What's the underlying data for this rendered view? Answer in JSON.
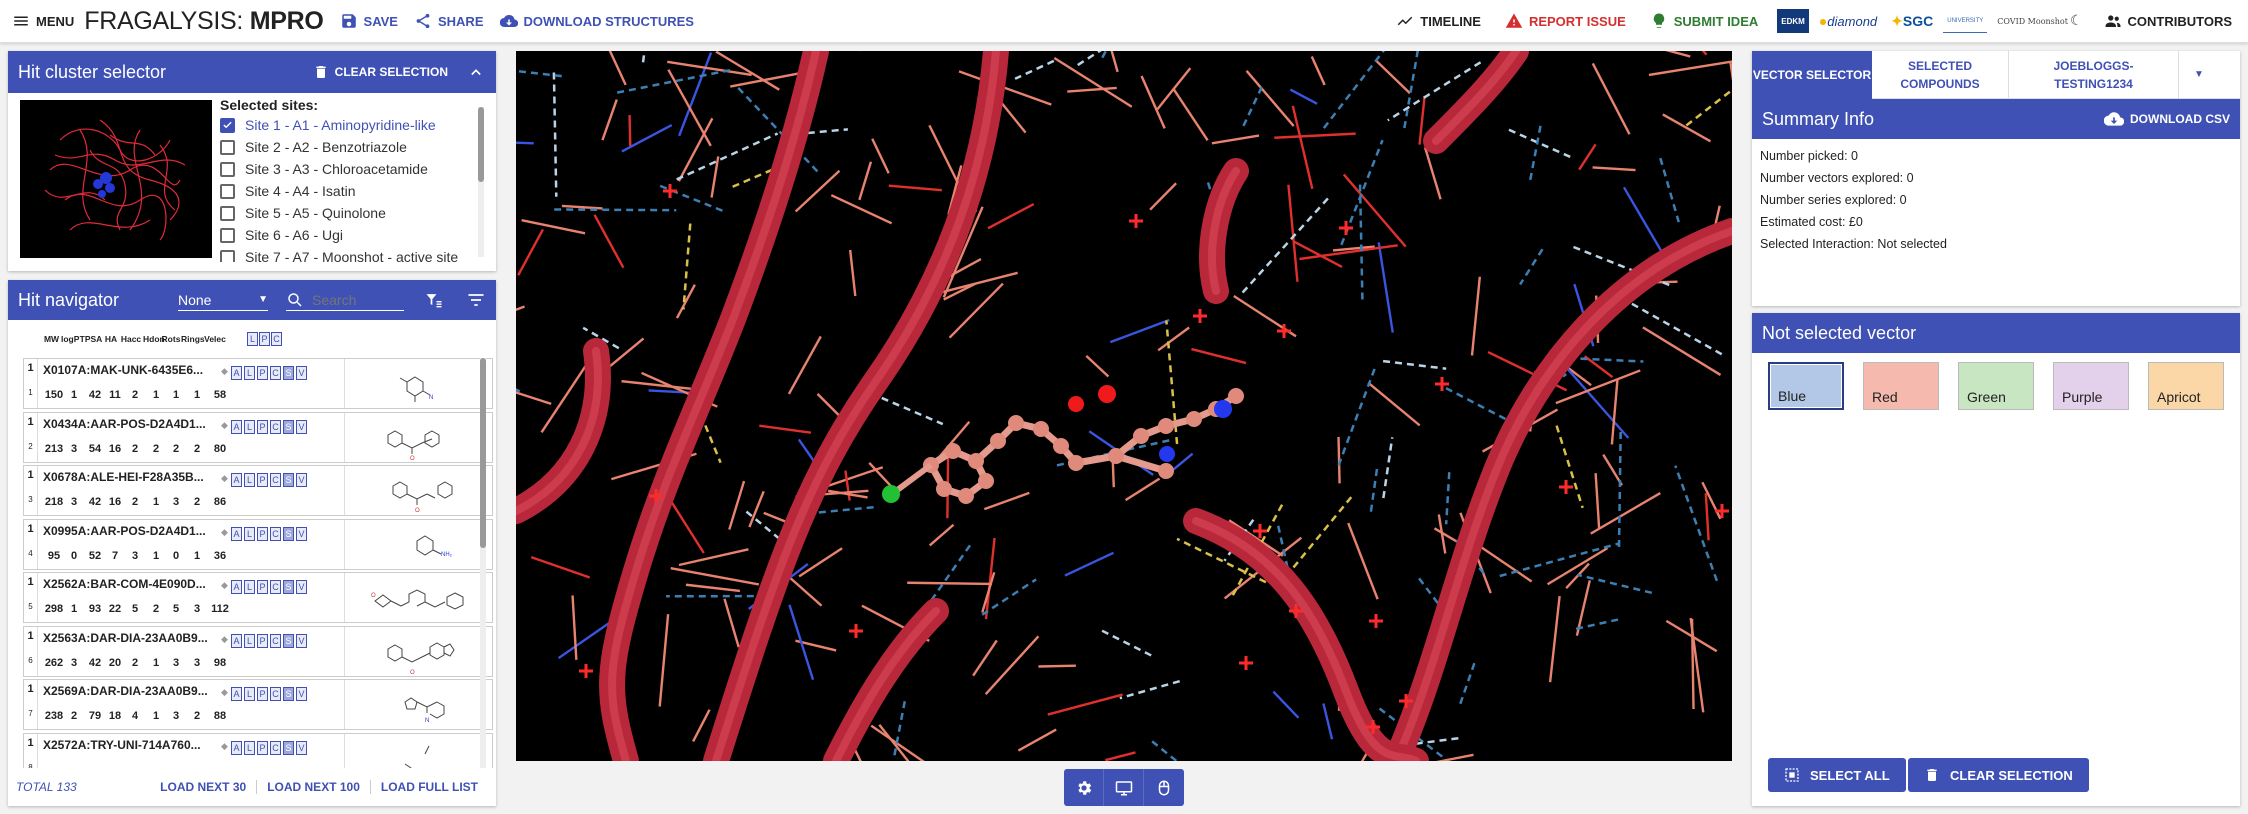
{
  "topbar": {
    "menu_label": "Menu",
    "brand_prefix": "FRAGALYSIS:",
    "brand_target": "MPRO",
    "save_label": "Save",
    "share_label": "Share",
    "download_label": "Download structures",
    "timeline_label": "Timeline",
    "report_label": "Report issue",
    "submit_label": "Submit idea",
    "contributors_label": "Contributors",
    "logos": [
      "EDKM",
      "diamond",
      "SGC",
      "UNIVERSITY",
      "COVID Moonshot"
    ]
  },
  "cluster": {
    "title": "Hit cluster selector",
    "clear_label": "Clear selection",
    "selected_sites_label": "Selected sites:",
    "sites": [
      {
        "label": "Site 1 - A1 - Aminopyridine-like",
        "checked": true
      },
      {
        "label": "Site 2 - A2 - Benzotriazole",
        "checked": false
      },
      {
        "label": "Site 3 - A3 - Chloroacetamide",
        "checked": false
      },
      {
        "label": "Site 4 - A4 - Isatin",
        "checked": false
      },
      {
        "label": "Site 5 - A5 - Quinolone",
        "checked": false
      },
      {
        "label": "Site 6 - A6 - Ugi",
        "checked": false
      },
      {
        "label": "Site 7 - A7 - Moonshot - active site",
        "checked": false
      }
    ]
  },
  "navigator": {
    "title": "Hit navigator",
    "filter_value": "None",
    "search_placeholder": "Search",
    "columns": [
      "MW",
      "logP",
      "TPSA",
      "HA",
      "Hacc",
      "Hdon",
      "Rots",
      "Rings",
      "Velec"
    ],
    "header_toggles": [
      "L",
      "P",
      "C"
    ],
    "row_toggles": [
      "A",
      "L",
      "P",
      "C",
      "S",
      "V"
    ],
    "hits": [
      {
        "n": "1",
        "i": "1",
        "name": "X0107A:MAK-UNK-6435E6...",
        "vals": [
          "150",
          "1",
          "42",
          "11",
          "2",
          "1",
          "1",
          "1",
          "58"
        ]
      },
      {
        "n": "1",
        "i": "2",
        "name": "X0434A:AAR-POS-D2A4D1...",
        "vals": [
          "213",
          "3",
          "54",
          "16",
          "2",
          "2",
          "2",
          "2",
          "80"
        ]
      },
      {
        "n": "1",
        "i": "3",
        "name": "X0678A:ALE-HEI-F28A35B...",
        "vals": [
          "218",
          "3",
          "42",
          "16",
          "2",
          "1",
          "3",
          "2",
          "86"
        ]
      },
      {
        "n": "1",
        "i": "4",
        "name": "X0995A:AAR-POS-D2A4D1...",
        "vals": [
          "95",
          "0",
          "52",
          "7",
          "3",
          "1",
          "0",
          "1",
          "36"
        ]
      },
      {
        "n": "1",
        "i": "5",
        "name": "X2562A:BAR-COM-4E090D...",
        "vals": [
          "298",
          "1",
          "93",
          "22",
          "5",
          "2",
          "5",
          "3",
          "112"
        ]
      },
      {
        "n": "1",
        "i": "6",
        "name": "X2563A:DAR-DIA-23AA0B9...",
        "vals": [
          "262",
          "3",
          "42",
          "20",
          "2",
          "1",
          "3",
          "3",
          "98"
        ]
      },
      {
        "n": "1",
        "i": "7",
        "name": "X2569A:DAR-DIA-23AA0B9...",
        "vals": [
          "238",
          "2",
          "79",
          "18",
          "4",
          "1",
          "3",
          "2",
          "88"
        ]
      },
      {
        "n": "1",
        "i": "8",
        "name": "X2572A:TRY-UNI-714A760...",
        "vals": [
          "",
          "",
          "",
          "",
          "",
          "",
          "",
          "",
          ""
        ]
      }
    ],
    "total_label": "TOTAL 133",
    "load30": "Load next 30",
    "load100": "Load next 100",
    "loadall": "Load full list"
  },
  "tabs": [
    {
      "label": "Vector selector",
      "active": true
    },
    {
      "label": "Selected compounds",
      "active": false
    },
    {
      "label": "joebloggs-testing1234",
      "active": false
    }
  ],
  "summary": {
    "title": "Summary Info",
    "download_label": "Download CSV",
    "rows": [
      "Number picked: 0",
      "Number vectors explored: 0",
      "Number series explored: 0",
      "Estimated cost: £0",
      "Selected Interaction: Not selected"
    ]
  },
  "vector": {
    "title": "Not selected vector",
    "colors": [
      {
        "label": "Blue",
        "bg": "#b3c8e6"
      },
      {
        "label": "Red",
        "bg": "#f6b9ae"
      },
      {
        "label": "Green",
        "bg": "#c9e6c3"
      },
      {
        "label": "Purple",
        "bg": "#e3d0ea"
      },
      {
        "label": "Apricot",
        "bg": "#fbd6a7"
      }
    ],
    "select_all": "Select all",
    "clear_selection": "Clear selection"
  },
  "colors": {
    "accent": "#3f51b5",
    "report": "#d32f2f",
    "submit": "#2e7d32"
  }
}
